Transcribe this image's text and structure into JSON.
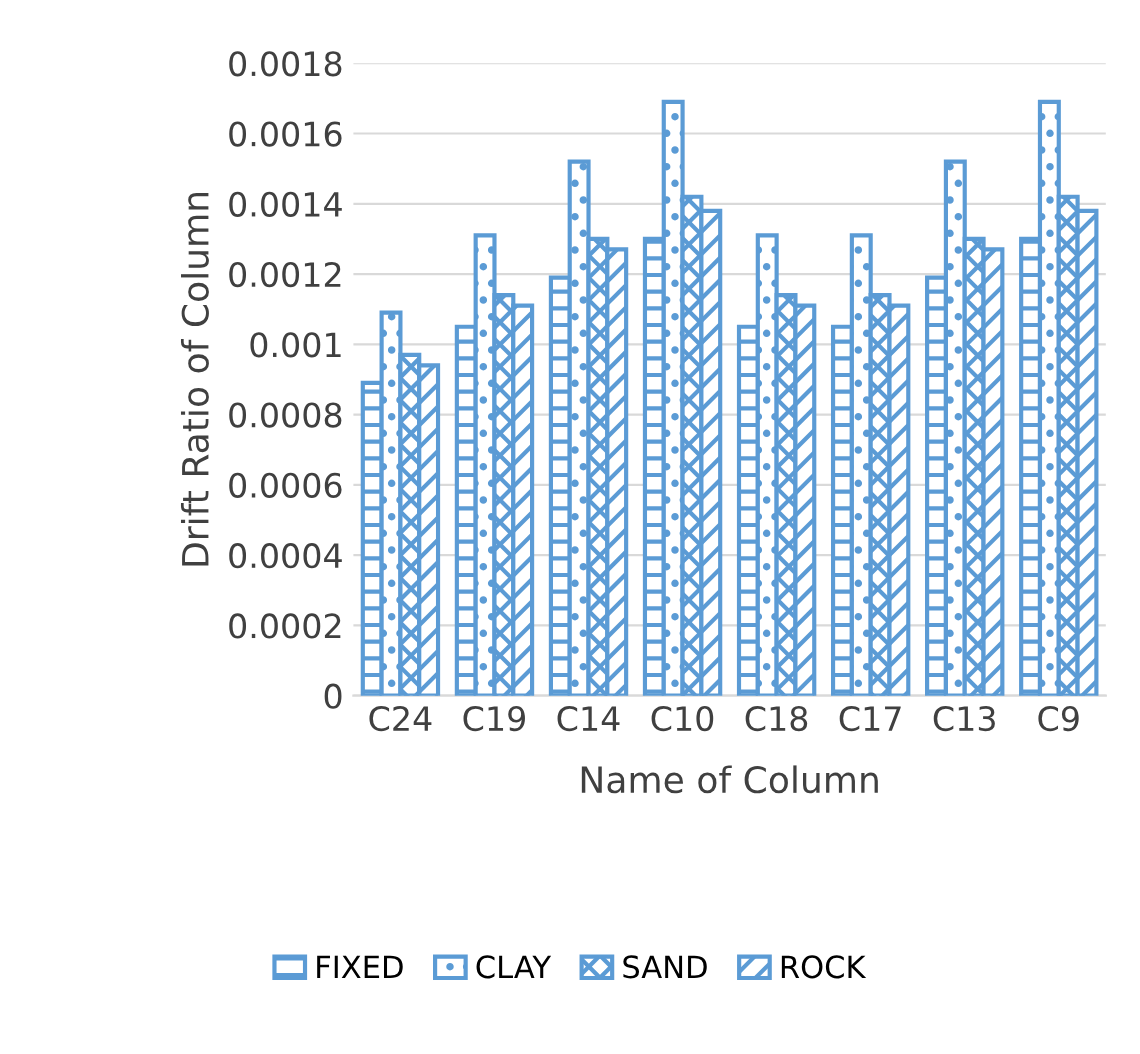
{
  "chart_data": {
    "type": "bar",
    "xlabel": "Name of Column",
    "ylabel": "Drift Ratio of Column",
    "categories": [
      "C24",
      "C19",
      "C14",
      "C10",
      "C18",
      "C17",
      "C13",
      "C9"
    ],
    "series": [
      {
        "name": "FIXED",
        "color": "#5b9bd5",
        "values": [
          0.00089,
          0.00105,
          0.00119,
          0.0013,
          0.00105,
          0.00105,
          0.00119,
          0.0013
        ]
      },
      {
        "name": "CLAY",
        "color": "#5b9bd5",
        "values": [
          0.00109,
          0.00131,
          0.00152,
          0.00169,
          0.00131,
          0.00131,
          0.00152,
          0.00169
        ]
      },
      {
        "name": "SAND",
        "color": "#5b9bd5",
        "values": [
          0.00097,
          0.00114,
          0.0013,
          0.00142,
          0.00114,
          0.00114,
          0.0013,
          0.00142
        ]
      },
      {
        "name": "ROCK",
        "color": "#5b9bd5",
        "values": [
          0.00094,
          0.00111,
          0.00127,
          0.00138,
          0.00111,
          0.00111,
          0.00127,
          0.00138
        ]
      }
    ],
    "ylim": [
      0,
      0.0018
    ],
    "yticks": [
      {
        "value": 0,
        "label": "0"
      },
      0.0002,
      0.0004,
      0.0006,
      0.0008,
      {
        "value": 0.001,
        "label": "0.001"
      },
      0.0012,
      0.0014,
      0.0016,
      0.0018
    ],
    "grid": "y",
    "legend": "bottom"
  }
}
